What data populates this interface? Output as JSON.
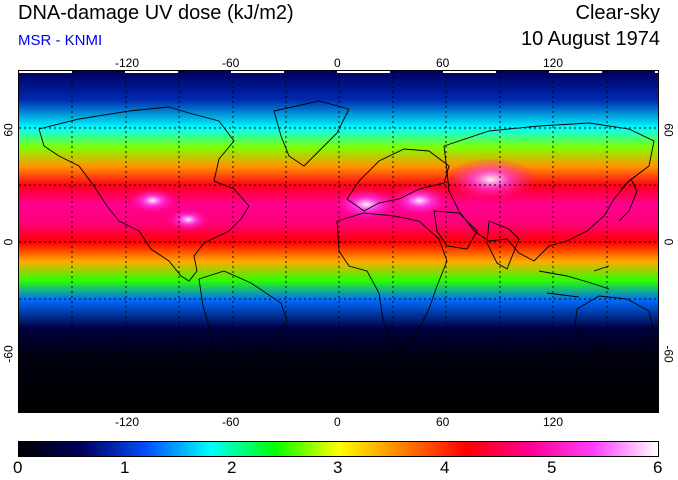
{
  "header": {
    "title": "DNA-damage UV dose (kJ/m2)",
    "subtitle": "MSR - KNMI",
    "condition": "Clear-sky",
    "date": "10 August 1974"
  },
  "map": {
    "lon_ticks": [
      "-120",
      "-60",
      "0",
      "60",
      "120"
    ],
    "lat_ticks": [
      "60",
      "0",
      "-60"
    ],
    "lon_range": [
      -180,
      180
    ],
    "lat_range": [
      -90,
      90
    ],
    "gridlines": "dotted every 30 degrees",
    "field_profile": [
      {
        "lat": 90,
        "dose": 0.6
      },
      {
        "lat": 75,
        "dose": 0.9
      },
      {
        "lat": 60,
        "dose": 1.8
      },
      {
        "lat": 50,
        "dose": 2.7
      },
      {
        "lat": 40,
        "dose": 3.5
      },
      {
        "lat": 30,
        "dose": 4.3
      },
      {
        "lat": 20,
        "dose": 4.8
      },
      {
        "lat": 10,
        "dose": 4.7
      },
      {
        "lat": 0,
        "dose": 4.2
      },
      {
        "lat": -10,
        "dose": 3.4
      },
      {
        "lat": -20,
        "dose": 2.5
      },
      {
        "lat": -30,
        "dose": 1.3
      },
      {
        "lat": -45,
        "dose": 0.4
      },
      {
        "lat": -60,
        "dose": 0.1
      },
      {
        "lat": -90,
        "dose": 0.0
      }
    ],
    "hotspots": [
      {
        "name": "Tibetan Plateau",
        "lon": 85,
        "lat": 33,
        "dose": 5.8
      },
      {
        "name": "Sahara",
        "lon": 15,
        "lat": 20,
        "dose": 5.4
      },
      {
        "name": "Arabia",
        "lon": 45,
        "lat": 22,
        "dose": 5.3
      },
      {
        "name": "Mexico",
        "lon": -105,
        "lat": 22,
        "dose": 5.1
      },
      {
        "name": "Central America",
        "lon": -85,
        "lat": 12,
        "dose": 5.0
      }
    ]
  },
  "colorbar": {
    "labels": [
      "0",
      "1",
      "2",
      "3",
      "4",
      "5",
      "6"
    ],
    "min": 0,
    "max": 6,
    "stops": [
      "#000000",
      "#000060",
      "#0050ff",
      "#00ffff",
      "#00ff00",
      "#ffff00",
      "#ff8000",
      "#ff0000",
      "#ff0090",
      "#ff40ff",
      "#ffffff"
    ]
  }
}
